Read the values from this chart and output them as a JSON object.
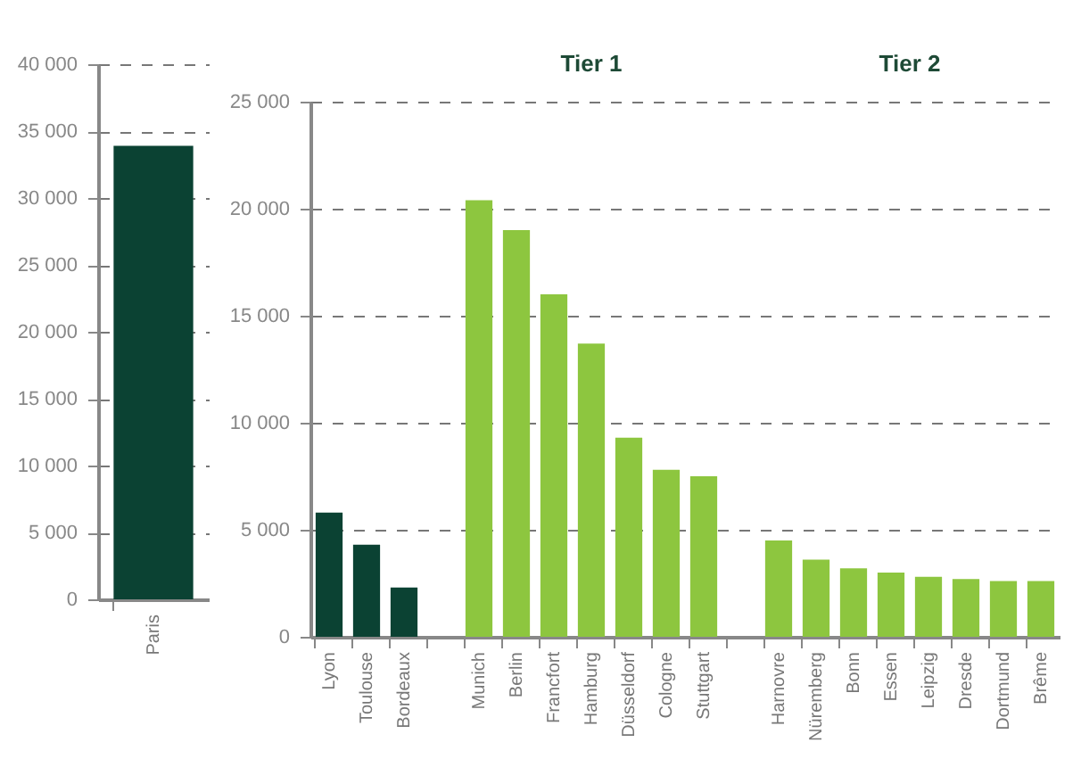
{
  "chart_data": [
    {
      "type": "bar",
      "categories": [
        "Paris"
      ],
      "values": [
        33900
      ],
      "colors": [
        "#0b4233"
      ],
      "ylim": [
        0,
        40000
      ],
      "yticks": [
        0,
        {
          "value": 5000,
          "label": "5 000"
        },
        {
          "value": 10000,
          "label": "10 000"
        },
        {
          "value": 15000,
          "label": "15 000"
        },
        {
          "value": 20000,
          "label": "20 000"
        },
        {
          "value": 25000,
          "label": "25 000"
        },
        {
          "value": 30000,
          "label": "30 000"
        },
        {
          "value": 35000,
          "label": "35 000"
        },
        {
          "value": 40000,
          "label": "40 000"
        }
      ],
      "grid": "y"
    },
    {
      "type": "bar",
      "categories": [
        "Lyon",
        "Toulouse",
        "Bordeaux",
        null,
        "Munich",
        "Berlin",
        "Francfort",
        "Hamburg",
        "Düsseldorf",
        "Cologne",
        "Stuttgart",
        null,
        "Harnovre",
        "Nüremberg",
        "Bonn",
        "Essen",
        "Leipzig",
        "Dresde",
        "Dortmund",
        "Brême"
      ],
      "values": [
        5800,
        4300,
        2300,
        null,
        20400,
        19000,
        16000,
        13700,
        9300,
        7800,
        7500,
        null,
        4500,
        3600,
        3200,
        3000,
        2800,
        2700,
        2600,
        2600
      ],
      "colors": [
        "#0b4233",
        "#0b4233",
        "#0b4233",
        null,
        "#8dc63f",
        "#8dc63f",
        "#8dc63f",
        "#8dc63f",
        "#8dc63f",
        "#8dc63f",
        "#8dc63f",
        null,
        "#8dc63f",
        "#8dc63f",
        "#8dc63f",
        "#8dc63f",
        "#8dc63f",
        "#8dc63f",
        "#8dc63f",
        "#8dc63f"
      ],
      "ylim": [
        0,
        25000
      ],
      "yticks": [
        0,
        {
          "value": 5000,
          "label": "5 000"
        },
        {
          "value": 10000,
          "label": "10 000"
        },
        {
          "value": 15000,
          "label": "15 000"
        },
        {
          "value": 20000,
          "label": "20 000"
        },
        {
          "value": 25000,
          "label": "25 000"
        }
      ],
      "grid": "y",
      "annotations": [
        "Tier 1",
        "Tier 2"
      ]
    }
  ]
}
